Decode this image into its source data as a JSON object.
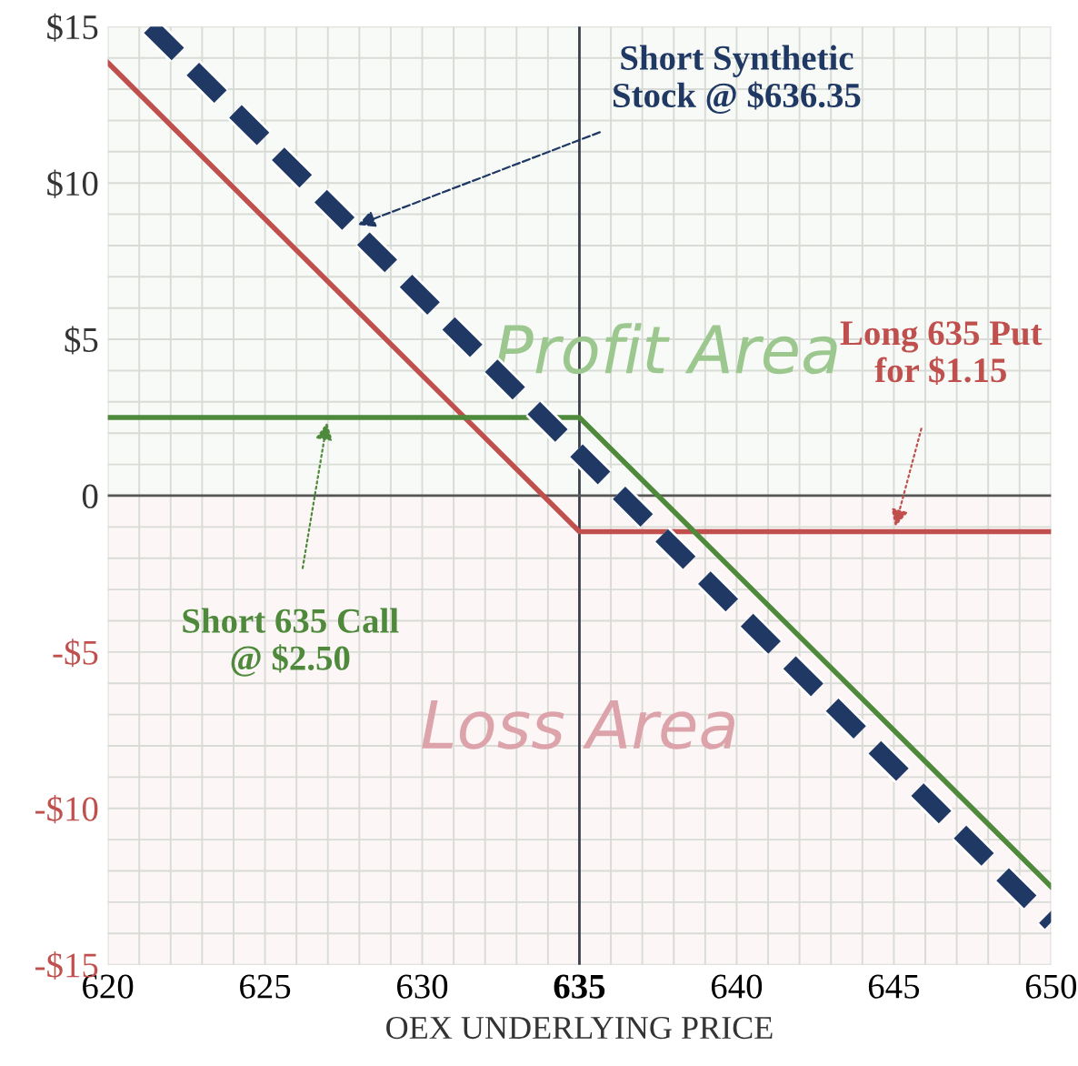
{
  "chart_data": {
    "type": "line",
    "xlabel": "OEX UNDERLYING PRICE",
    "xlim": [
      620,
      650
    ],
    "xticks": [
      620,
      625,
      630,
      635,
      640,
      645,
      650
    ],
    "ylim": [
      -15,
      15
    ],
    "yticks": [
      {
        "value": -15,
        "label": "-$15"
      },
      {
        "value": -10,
        "label": "-$10"
      },
      {
        "value": -5,
        "label": "-$5"
      },
      0,
      {
        "value": 5,
        "label": "$5"
      },
      {
        "value": 10,
        "label": "$10"
      },
      {
        "value": 15,
        "label": "$15"
      }
    ],
    "grid": true,
    "marker": "none",
    "series": [
      {
        "color": "#c0504d",
        "x": [
          620,
          635,
          650
        ],
        "values": [
          13.85,
          -1.15,
          -1.15
        ],
        "line_style": "solid"
      },
      {
        "color": "#4f8a3c",
        "x": [
          620,
          635,
          650
        ],
        "values": [
          2.5,
          2.5,
          -12.5
        ],
        "line_style": "solid"
      },
      {
        "color": "#1f3864",
        "x": [
          621.35,
          650
        ],
        "values": [
          15,
          -13.65
        ],
        "line_style": "dashed"
      }
    ],
    "ref_lines": [
      {
        "axis": "x",
        "value": 635,
        "color": "#3a3f4a"
      },
      {
        "axis": "y",
        "value": 0,
        "color": "#555555"
      }
    ],
    "bands": [
      {
        "axis": "y",
        "from": 0,
        "to": 15,
        "label": "Profit Area",
        "color": "#e8f2e4"
      },
      {
        "axis": "y",
        "from": -15,
        "to": 0,
        "label": "Loss Area",
        "color": "#f5e4e6"
      }
    ],
    "annotations": [
      {
        "text": "Short Synthetic\nStock @ $636.35",
        "x": 627.8,
        "y": 8.6
      },
      {
        "text": "Long 635 Put\nfor $1.15",
        "x": 645,
        "y": -1.15
      },
      {
        "text": "Short 635 Call\n@ $2.50",
        "x": 627,
        "y": 2.5
      }
    ]
  }
}
